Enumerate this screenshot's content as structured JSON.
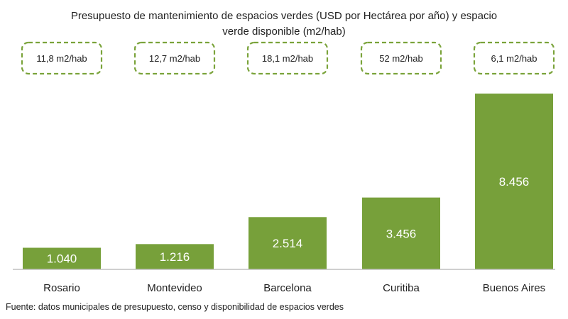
{
  "chart_data": {
    "type": "bar",
    "title_lines": [
      "Presupuesto de mantenimiento de espacios verdes (USD por Hectárea por año) y espacio",
      "verde disponible (m2/hab)"
    ],
    "categories": [
      "Rosario",
      "Montevideo",
      "Barcelona",
      "Curitiba",
      "Buenos Aires"
    ],
    "values": [
      1040,
      1216,
      2514,
      3456,
      8456
    ],
    "value_labels": [
      "1.040",
      "1.216",
      "2.514",
      "3.456",
      "8.456"
    ],
    "green_space_labels": [
      "11,8 m2/hab",
      "12,7 m2/hab",
      "18,1 m2/hab",
      "52 m2/hab",
      "6,1 m2/hab"
    ],
    "ylim": [
      0,
      8456
    ],
    "grid": false,
    "bar_color": "#77a03a",
    "badge_border_color": "#7aa33a",
    "source": "Fuente: datos municipales de presupuesto, censo y disponibilidad de espacios verdes"
  }
}
